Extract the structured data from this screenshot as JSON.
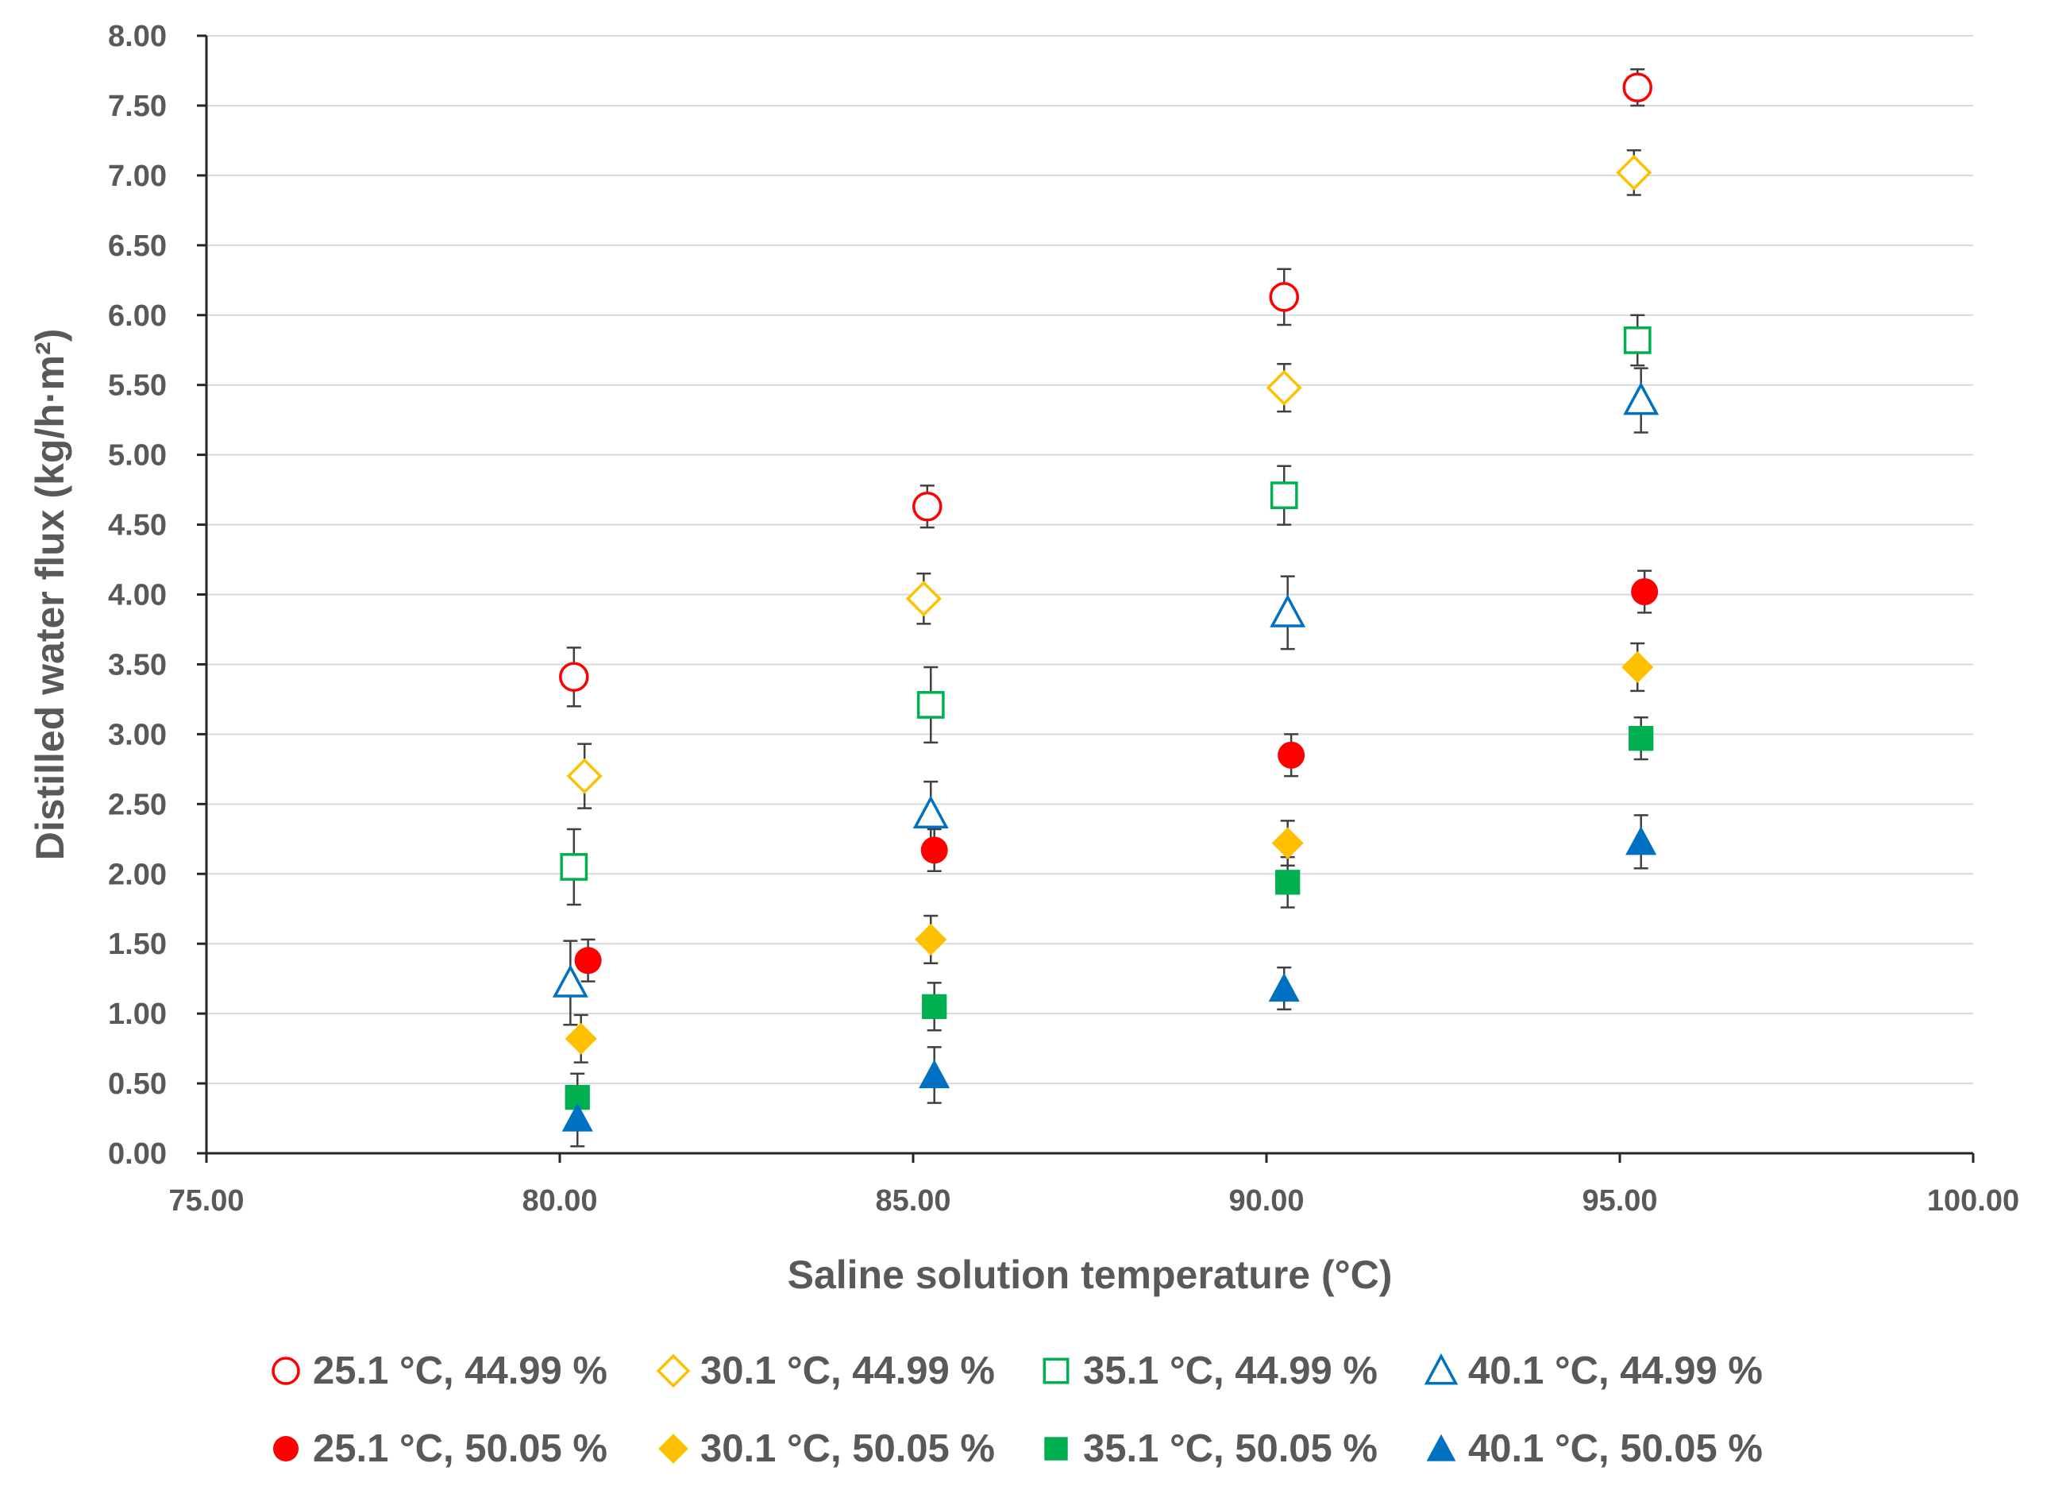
{
  "chart_data": {
    "type": "scatter",
    "title": "",
    "xlabel": "Saline solution temperature (°C)",
    "ylabel": "Distilled water flux (kg/h·m²)",
    "xlim": [
      75,
      100
    ],
    "ylim": [
      0,
      8
    ],
    "x_ticks": [
      "75.00",
      "80.00",
      "85.00",
      "90.00",
      "95.00",
      "100.00"
    ],
    "y_ticks": [
      "0.00",
      "0.50",
      "1.00",
      "1.50",
      "2.00",
      "2.50",
      "3.00",
      "3.50",
      "4.00",
      "4.50",
      "5.00",
      "5.50",
      "6.00",
      "6.50",
      "7.00",
      "7.50",
      "8.00"
    ],
    "grid": "horizontal",
    "legend_position": "bottom",
    "series": [
      {
        "name": "25.1 °C, 44.99 %",
        "marker": "circle",
        "filled": false,
        "color": "#ff0000",
        "x": [
          80.2,
          85.2,
          90.25,
          95.25
        ],
        "y": [
          3.41,
          4.63,
          6.13,
          7.63
        ],
        "err": [
          0.21,
          0.15,
          0.2,
          0.13
        ]
      },
      {
        "name": "30.1 °C, 44.99 %",
        "marker": "diamond",
        "filled": false,
        "color": "#ffc000",
        "x": [
          80.35,
          85.15,
          90.25,
          95.2
        ],
        "y": [
          2.7,
          3.97,
          5.48,
          7.02
        ],
        "err": [
          0.23,
          0.18,
          0.17,
          0.16
        ]
      },
      {
        "name": "35.1 °C, 44.99 %",
        "marker": "square",
        "filled": false,
        "color": "#00b050",
        "x": [
          80.2,
          85.25,
          90.25,
          95.25
        ],
        "y": [
          2.05,
          3.21,
          4.71,
          5.82
        ],
        "err": [
          0.27,
          0.27,
          0.21,
          0.18
        ]
      },
      {
        "name": "40.1 °C, 44.99 %",
        "marker": "triangle",
        "filled": false,
        "color": "#0070c0",
        "x": [
          80.15,
          85.25,
          90.3,
          95.3
        ],
        "y": [
          1.22,
          2.43,
          3.87,
          5.39
        ],
        "err": [
          0.3,
          0.23,
          0.26,
          0.23
        ]
      },
      {
        "name": "25.1 °C, 50.05 %",
        "marker": "circle",
        "filled": true,
        "color": "#ff0000",
        "x": [
          80.4,
          85.3,
          90.35,
          95.35
        ],
        "y": [
          1.38,
          2.17,
          2.85,
          4.02
        ],
        "err": [
          0.15,
          0.15,
          0.15,
          0.15
        ]
      },
      {
        "name": "30.1 °C, 50.05 %",
        "marker": "diamond",
        "filled": true,
        "color": "#ffc000",
        "x": [
          80.3,
          85.25,
          90.3,
          95.25
        ],
        "y": [
          0.82,
          1.53,
          2.22,
          3.48
        ],
        "err": [
          0.17,
          0.17,
          0.16,
          0.17
        ]
      },
      {
        "name": "35.1 °C, 50.05 %",
        "marker": "square",
        "filled": true,
        "color": "#00b050",
        "x": [
          80.25,
          85.3,
          90.3,
          95.3
        ],
        "y": [
          0.4,
          1.05,
          1.94,
          2.97
        ],
        "err": [
          0.17,
          0.17,
          0.18,
          0.15
        ]
      },
      {
        "name": "40.1 °C, 50.05 %",
        "marker": "triangle",
        "filled": true,
        "color": "#0070c0",
        "x": [
          80.25,
          85.3,
          90.25,
          95.3
        ],
        "y": [
          0.25,
          0.56,
          1.18,
          2.23
        ],
        "err": [
          0.2,
          0.2,
          0.15,
          0.19
        ]
      }
    ]
  }
}
